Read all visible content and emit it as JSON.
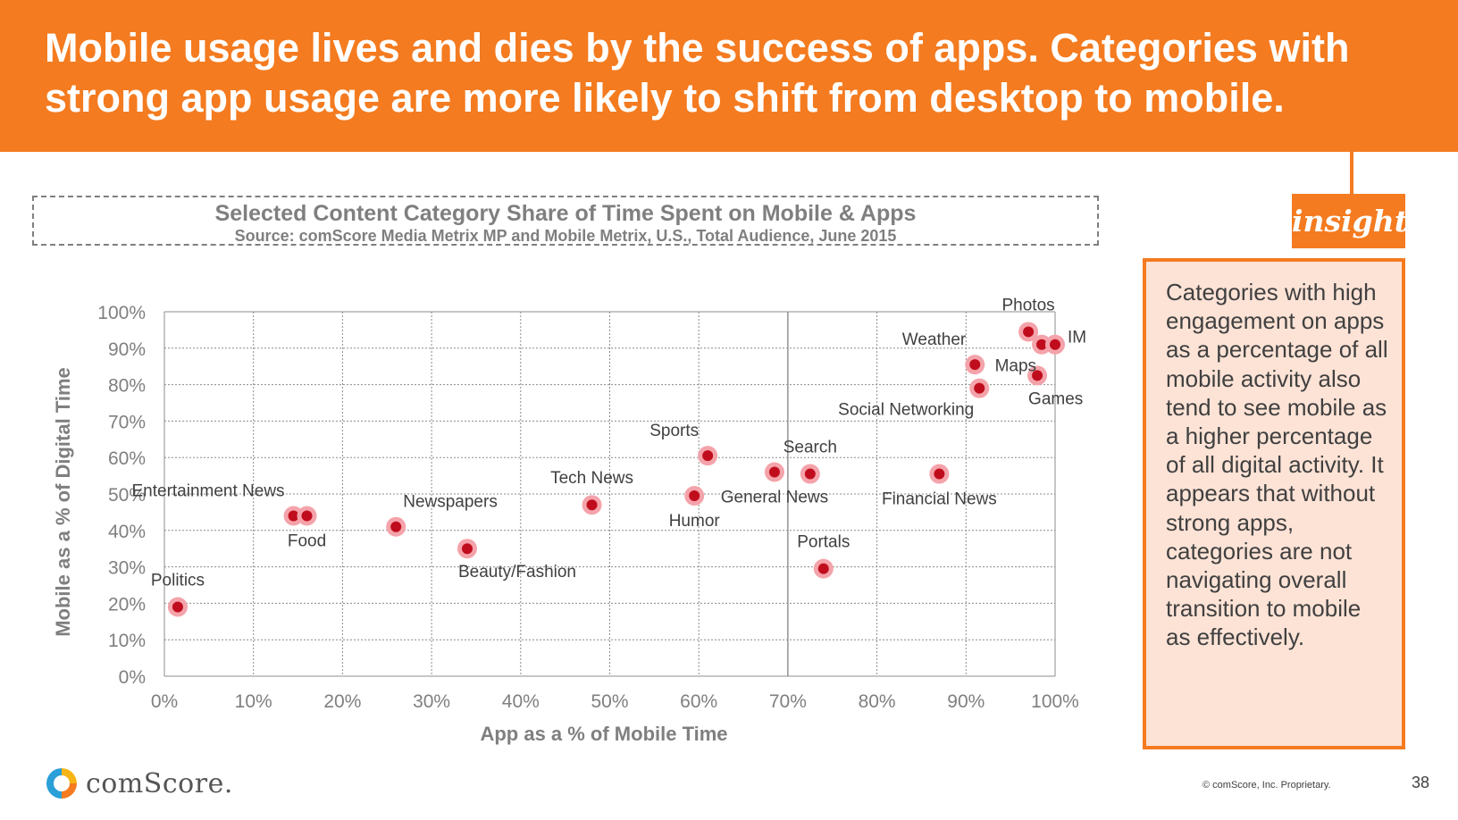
{
  "header": {
    "title": "Mobile usage lives and dies by the success of apps. Categories with strong app usage are more likely to shift from desktop to mobile."
  },
  "chart_title_box": {
    "title": "Selected Content Category Share of Time Spent on Mobile & Apps",
    "source": "Source: comScore Media Metrix MP and Mobile Metrix, U.S., Total Audience, June 2015"
  },
  "insight": {
    "tag": "insight",
    "text": "Categories with high engagement on apps as a percentage of all mobile activity also tend to see mobile as a higher percentage of all digital activity. It appears that without strong apps, categories are not navigating overall transition to mobile as effectively."
  },
  "footer": {
    "logo_text": "comScore.",
    "copyright": "© comScore, Inc. Proprietary.",
    "page_number": "38"
  },
  "colors": {
    "orange": "#f47b20",
    "insight_bg": "#fde3d6",
    "point": "#c00d1e",
    "halo": "#f4a3aa",
    "axis_text": "#7f7f7f"
  },
  "chart_data": {
    "type": "scatter",
    "xlabel": "App as a % of Mobile Time",
    "ylabel": "Mobile as a % of Digital Time",
    "xlim": [
      0,
      100
    ],
    "ylim": [
      0,
      100
    ],
    "x_ticks": [
      "0%",
      "10%",
      "20%",
      "30%",
      "40%",
      "50%",
      "60%",
      "70%",
      "80%",
      "90%",
      "100%"
    ],
    "y_ticks": [
      "0%",
      "10%",
      "20%",
      "30%",
      "40%",
      "50%",
      "60%",
      "70%",
      "80%",
      "90%",
      "100%"
    ],
    "grid": true,
    "points": [
      {
        "label": "Politics",
        "x": 1.5,
        "y": 19,
        "label_pos": "above"
      },
      {
        "label": "Entertainment News",
        "x": 14.5,
        "y": 44,
        "label_pos": "above-left"
      },
      {
        "label": "Food",
        "x": 16,
        "y": 44,
        "label_pos": "below"
      },
      {
        "label": "Newspapers",
        "x": 26,
        "y": 41,
        "label_pos": "above-right"
      },
      {
        "label": "Beauty/Fashion",
        "x": 34,
        "y": 35,
        "label_pos": "below-right"
      },
      {
        "label": "Tech News",
        "x": 48,
        "y": 47,
        "label_pos": "above"
      },
      {
        "label": "Humor",
        "x": 59.5,
        "y": 49.5,
        "label_pos": "below"
      },
      {
        "label": "Sports",
        "x": 61,
        "y": 60.5,
        "label_pos": "above-left"
      },
      {
        "label": "General News",
        "x": 68.5,
        "y": 56,
        "label_pos": "below"
      },
      {
        "label": "Search",
        "x": 72.5,
        "y": 55.5,
        "label_pos": "above"
      },
      {
        "label": "Portals",
        "x": 74,
        "y": 29.5,
        "label_pos": "above"
      },
      {
        "label": "Financial News",
        "x": 87,
        "y": 55.5,
        "label_pos": "below"
      },
      {
        "label": "Weather",
        "x": 91,
        "y": 85.5,
        "label_pos": "above-left"
      },
      {
        "label": "Social Networking",
        "x": 91.5,
        "y": 79,
        "label_pos": "below-left"
      },
      {
        "label": "Photos",
        "x": 97,
        "y": 94.5,
        "label_pos": "above"
      },
      {
        "label": "Maps",
        "x": 98.5,
        "y": 91,
        "label_pos": "below-left"
      },
      {
        "label": "IM",
        "x": 100,
        "y": 91,
        "label_pos": "right"
      },
      {
        "label": "Games",
        "x": 98,
        "y": 82.5,
        "label_pos": "below-right"
      }
    ]
  }
}
